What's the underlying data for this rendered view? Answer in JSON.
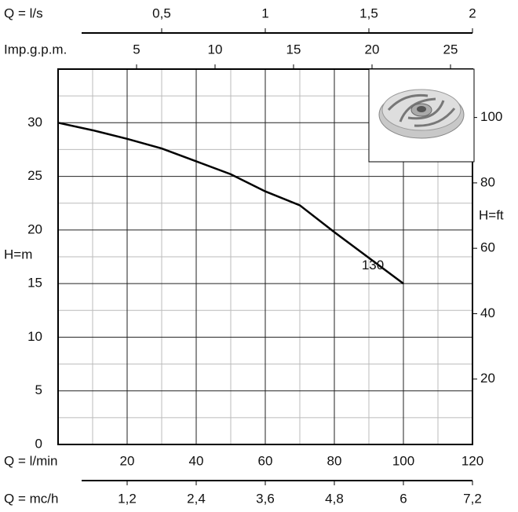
{
  "chart_data": {
    "type": "line",
    "x_label": "Q = l/min",
    "y_label": "H=m",
    "y2_label": "H=ft",
    "xlim": [
      0,
      120
    ],
    "xticks": [
      20,
      40,
      60,
      80,
      100,
      120
    ],
    "ylim": [
      0,
      35
    ],
    "yticks": [
      0,
      5,
      10,
      15,
      20,
      25,
      30
    ],
    "y2lim": [
      0,
      114.8
    ],
    "y2ticks": [
      20,
      40,
      60,
      80,
      100
    ],
    "grid": true,
    "extra_x_axes": [
      {
        "label": "Q = l/s",
        "position": "top",
        "lim": [
          0,
          2
        ],
        "ticks": [
          {
            "value": 0.5,
            "label": "0,5"
          },
          1,
          {
            "value": 1.5,
            "label": "1,5"
          },
          2
        ]
      },
      {
        "label": "Imp.g.p.m.",
        "position": "top",
        "lim": [
          0,
          26.4
        ],
        "ticks": [
          5,
          10,
          15,
          20,
          25
        ]
      },
      {
        "label": "Q = mc/h",
        "position": "bottom",
        "lim": [
          0,
          7.2
        ],
        "ticks": [
          {
            "value": 1.2,
            "label": "1,2"
          },
          {
            "value": 2.4,
            "label": "2,4"
          },
          {
            "value": 3.6,
            "label": "3,6"
          },
          {
            "value": 4.8,
            "label": "4,8"
          },
          6,
          {
            "value": 7.2,
            "label": "7,2"
          }
        ]
      }
    ],
    "x": [
      0,
      10,
      20,
      30,
      40,
      50,
      60,
      70,
      80,
      90,
      100
    ],
    "series": [
      {
        "name": "130",
        "color": "#000000",
        "values": [
          30,
          29.3,
          28.5,
          27.6,
          26.4,
          25.2,
          23.6,
          22.3,
          19.8,
          17.4,
          15
        ]
      }
    ]
  }
}
